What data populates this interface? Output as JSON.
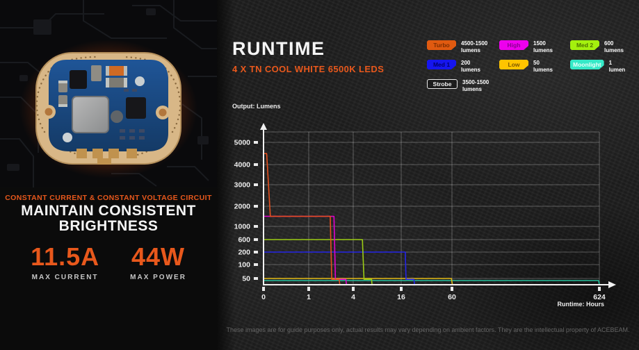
{
  "left_panel": {
    "circuit_caption": "CONSTANT CURRENT & CONSTANT VOLTAGE CIRCUIT",
    "headline_line1": "MAINTAIN CONSISTENT",
    "headline_line2": "BRIGHTNESS",
    "stats": [
      {
        "value": "11.5A",
        "label": "MAX CURRENT"
      },
      {
        "value": "44W",
        "label": "MAX POWER"
      }
    ],
    "accent_color": "#e8581c"
  },
  "right_panel": {
    "title": "RUNTIME",
    "subtitle": "4 X TN COOL WHITE 6500K LEDS",
    "output_axis_caption": "Output: Lumens",
    "runtime_axis_caption": "Runtime: Hours",
    "disclaimer": "These images are for guide purposes only, actual results may vary depending on ambient factors. They are the intellectual property of ACEBEAM."
  },
  "legend": {
    "items": [
      {
        "name": "Turbo",
        "value": "4500-1500",
        "unit": "lumens",
        "color": "#e05a10",
        "text_color": "#7c2d00",
        "outline": false
      },
      {
        "name": "High",
        "value": "1500",
        "unit": "lumens",
        "color": "#ee00ee",
        "text_color": "#8a0090",
        "outline": false
      },
      {
        "name": "Med 2",
        "value": "600",
        "unit": "lumens",
        "color": "#a4f00e",
        "text_color": "#4d7400",
        "outline": false
      },
      {
        "name": "Med 1",
        "value": "200",
        "unit": "lumens",
        "color": "#1616ee",
        "text_color": "#00006c",
        "outline": false
      },
      {
        "name": "Low",
        "value": "50",
        "unit": "lumens",
        "color": "#ffc400",
        "text_color": "#7d5800",
        "outline": false
      },
      {
        "name": "Moonlight",
        "value": "1",
        "unit": "lumen",
        "color": "#35e9c7",
        "text_color": "#eafff9",
        "outline": false
      },
      {
        "name": "Strobe",
        "value": "3500-1500",
        "unit": "lumens",
        "color": "transparent",
        "text_color": "#f2f2f2",
        "outline": true
      }
    ]
  },
  "chart_data": {
    "type": "line",
    "title": "RUNTIME",
    "xlabel": "Runtime: Hours",
    "ylabel": "Output: Lumens",
    "x_ticks": [
      0,
      1,
      4,
      16,
      60,
      624
    ],
    "y_ticks": [
      5000,
      4000,
      3000,
      2000,
      1000,
      600,
      200,
      100,
      50
    ],
    "grid": true,
    "legend_position": "top-right",
    "series": [
      {
        "name": "Turbo",
        "color": "#e8501e",
        "points": [
          [
            0,
            4500
          ],
          [
            0.07,
            4500
          ],
          [
            0.15,
            1500
          ],
          [
            2.45,
            1500
          ],
          [
            2.55,
            30
          ],
          [
            3.05,
            30
          ],
          [
            3.1,
            0
          ]
        ]
      },
      {
        "name": "High",
        "color": "#e300d0",
        "points": [
          [
            0,
            1500
          ],
          [
            2.7,
            1500
          ],
          [
            2.8,
            30
          ],
          [
            3.5,
            30
          ],
          [
            3.55,
            0
          ]
        ]
      },
      {
        "name": "Med 2",
        "color": "#9ccc14",
        "points": [
          [
            0,
            600
          ],
          [
            6.3,
            600
          ],
          [
            6.7,
            30
          ],
          [
            8.6,
            30
          ],
          [
            8.7,
            0
          ]
        ]
      },
      {
        "name": "Med 1",
        "color": "#2525e8",
        "points": [
          [
            0,
            200
          ],
          [
            19.5,
            200
          ],
          [
            20.2,
            30
          ],
          [
            27,
            30
          ],
          [
            27.5,
            0
          ]
        ]
      },
      {
        "name": "Low",
        "color": "#e3bb16",
        "points": [
          [
            0,
            50
          ],
          [
            59.5,
            50
          ],
          [
            61.5,
            0
          ]
        ]
      },
      {
        "name": "Moonlight",
        "color": "#27c29e",
        "points": [
          [
            0,
            1
          ],
          [
            621,
            1
          ],
          [
            624,
            0
          ]
        ]
      }
    ]
  }
}
